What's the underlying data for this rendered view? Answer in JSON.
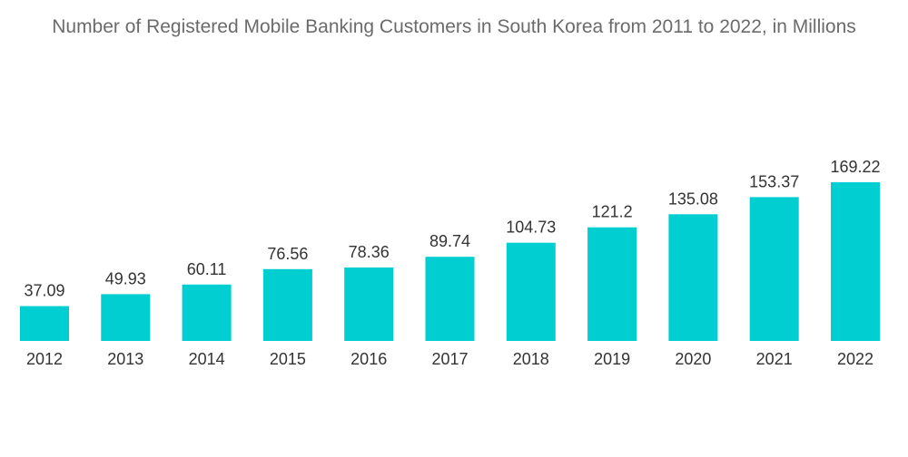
{
  "title": "Number of Registered Mobile Banking Customers in South Korea from 2011 to 2022, in Millions",
  "colors": {
    "bar": "#00CED1",
    "title": "#6b6b6b",
    "text": "#333333",
    "background": "#ffffff"
  },
  "chart_data": {
    "type": "bar",
    "title": "Number of Registered Mobile Banking Customers in South Korea from 2011 to 2022, in Millions",
    "xlabel": "",
    "ylabel": "",
    "categories": [
      "2012",
      "2013",
      "2014",
      "2015",
      "2016",
      "2017",
      "2018",
      "2019",
      "2020",
      "2021",
      "2022"
    ],
    "values": [
      37.09,
      49.93,
      60.11,
      76.56,
      78.36,
      89.74,
      104.73,
      121.2,
      135.08,
      153.37,
      169.22
    ],
    "value_labels": [
      "37.09",
      "49.93",
      "60.11",
      "76.56",
      "78.36",
      "89.74",
      "104.73",
      "121.2",
      "135.08",
      "153.37",
      "169.22"
    ],
    "ylim": [
      0,
      169.22
    ],
    "grid": false,
    "legend": "none"
  }
}
